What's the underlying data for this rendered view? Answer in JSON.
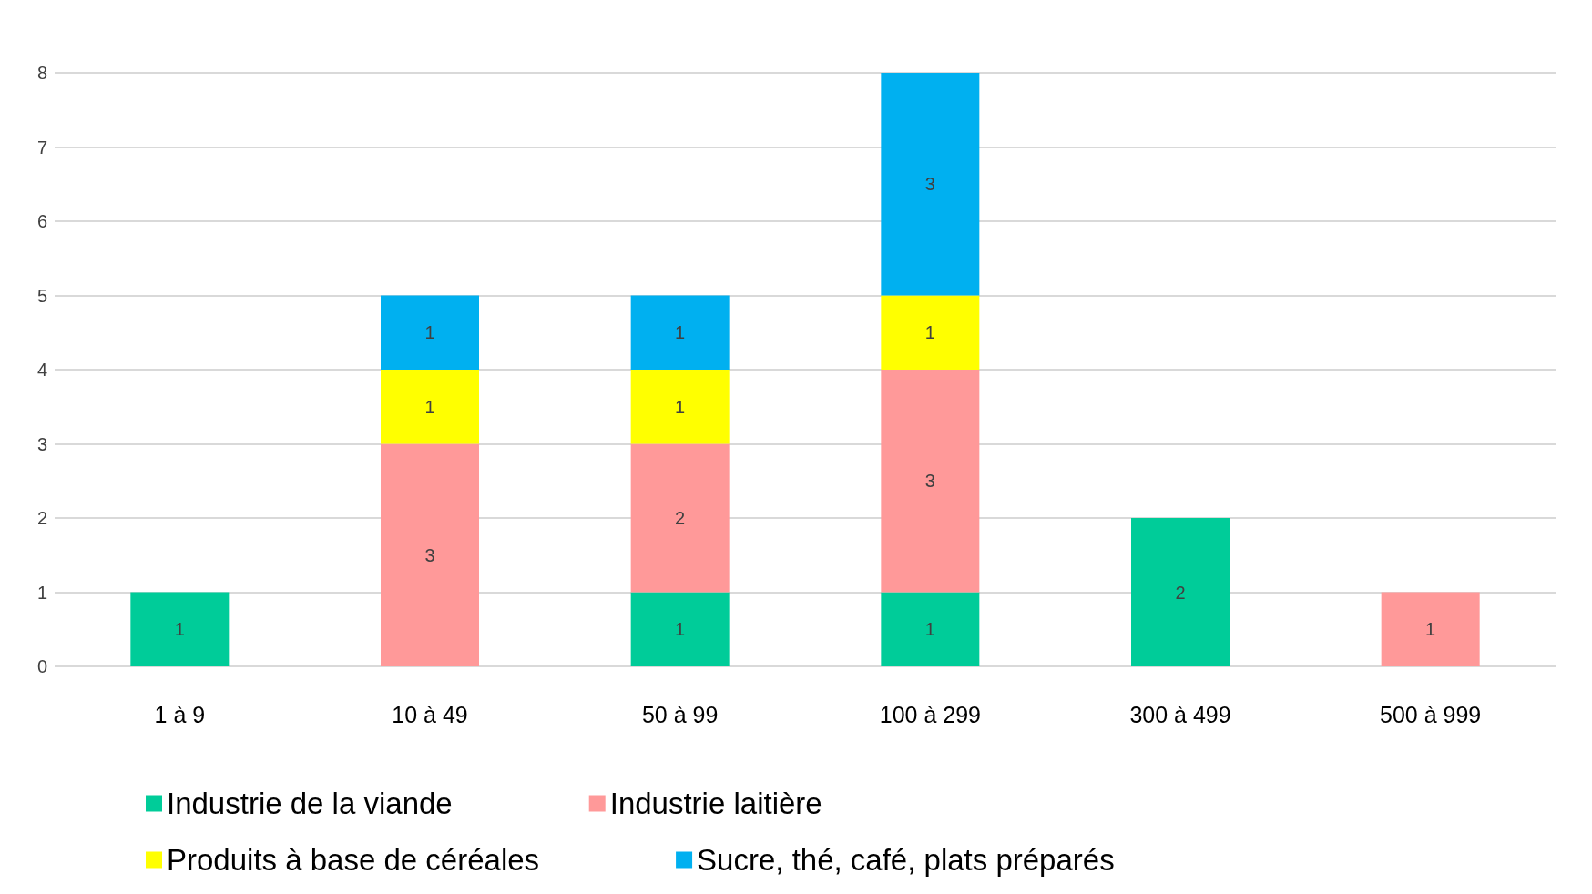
{
  "chart_data": {
    "type": "bar",
    "stacked": true,
    "categories": [
      "1 à 9",
      "10 à 49",
      "50 à 99",
      "100 à 299",
      "300 à 499",
      "500 à 999"
    ],
    "series": [
      {
        "name": "Industrie de la viande",
        "color": "#00cc99",
        "values": [
          1,
          null,
          1,
          1,
          2,
          null
        ]
      },
      {
        "name": "Industrie laitière",
        "color": "#ff9999",
        "values": [
          null,
          3,
          2,
          3,
          null,
          1
        ]
      },
      {
        "name": "Produits à base de céréales",
        "color": "#ffff00",
        "values": [
          null,
          1,
          1,
          1,
          null,
          null
        ]
      },
      {
        "name": "Sucre, thé, café, plats préparés",
        "color": "#00b0f0",
        "values": [
          null,
          1,
          1,
          3,
          null,
          null
        ]
      }
    ],
    "ylim": [
      0,
      8
    ],
    "yticks": [
      0,
      1,
      2,
      3,
      4,
      5,
      6,
      7,
      8
    ],
    "grid": "y",
    "legend": "bottom",
    "data_labels": true
  }
}
